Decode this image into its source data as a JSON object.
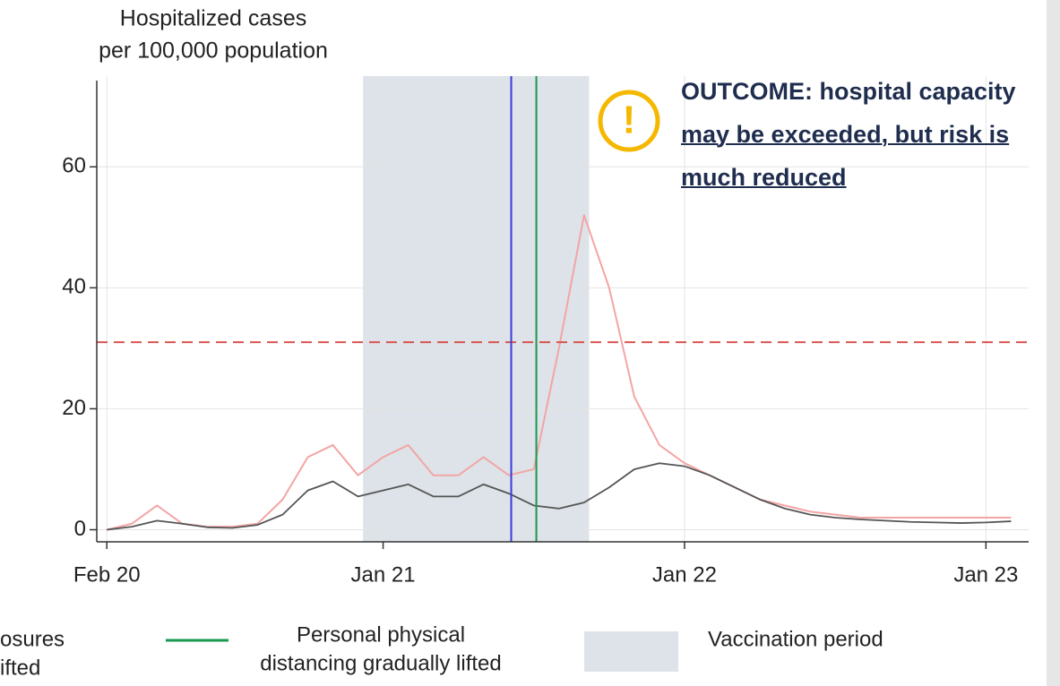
{
  "chart_data": {
    "type": "line",
    "ylabel": [
      "Hospitalized cases",
      "per 100,000 population"
    ],
    "x": [
      0,
      1,
      2,
      3,
      4,
      5,
      6,
      7,
      8,
      9,
      10,
      11,
      12,
      13,
      14,
      15,
      16,
      17,
      18,
      19,
      20,
      21,
      22,
      23,
      24,
      25,
      26,
      27,
      28,
      29,
      30,
      31,
      32,
      33,
      34,
      35,
      36
    ],
    "series": [
      {
        "color": "#f3a5a5",
        "values": [
          0,
          1,
          4,
          1,
          0.5,
          0.5,
          1,
          5,
          12,
          14,
          9,
          12,
          14,
          9,
          9,
          12,
          9,
          10,
          30,
          52,
          40,
          22,
          14,
          11,
          9,
          7,
          5,
          4,
          3,
          2.5,
          2,
          2,
          2,
          2,
          2,
          2,
          2
        ]
      },
      {
        "color": "#555555",
        "values": [
          0,
          0.5,
          1.5,
          1,
          0.4,
          0.3,
          0.8,
          2.5,
          6.5,
          8,
          5.5,
          6.5,
          7.5,
          5.5,
          5.5,
          7.5,
          6,
          4,
          3.5,
          4.5,
          7,
          10,
          11,
          10.5,
          9,
          7,
          5,
          3.5,
          2.5,
          2,
          1.7,
          1.5,
          1.3,
          1.2,
          1.1,
          1.2,
          1.4
        ]
      }
    ],
    "xlim": [
      -0.4,
      36.7
    ],
    "xticks": [
      {
        "value": 0,
        "label": "Feb 20"
      },
      {
        "value": 11,
        "label": "Jan 21"
      },
      {
        "value": 23,
        "label": "Jan 22"
      },
      {
        "value": 35,
        "label": "Jan 23"
      }
    ],
    "ylim": [
      -2,
      75
    ],
    "yticks": [
      0,
      20,
      40,
      60
    ],
    "grid": true,
    "hlines": [
      {
        "value": 31,
        "color": "#d9534f"
      }
    ],
    "vlines": [
      {
        "value": 16.1,
        "color": "#3b3bd8",
        "label": [
          "osures",
          "ifted"
        ]
      },
      {
        "value": 17.1,
        "color": "#1a9850",
        "label": [
          "Personal physical",
          "distancing gradually lifted"
        ]
      }
    ],
    "bands": [
      {
        "range": [
          10.2,
          19.2
        ],
        "color": "#dde3e8",
        "label": "Vaccination period"
      }
    ],
    "annotation": {
      "lead": "OUTCOME: hospital capacity",
      "emphasis": "may be exceeded, but risk is much reduced"
    }
  }
}
